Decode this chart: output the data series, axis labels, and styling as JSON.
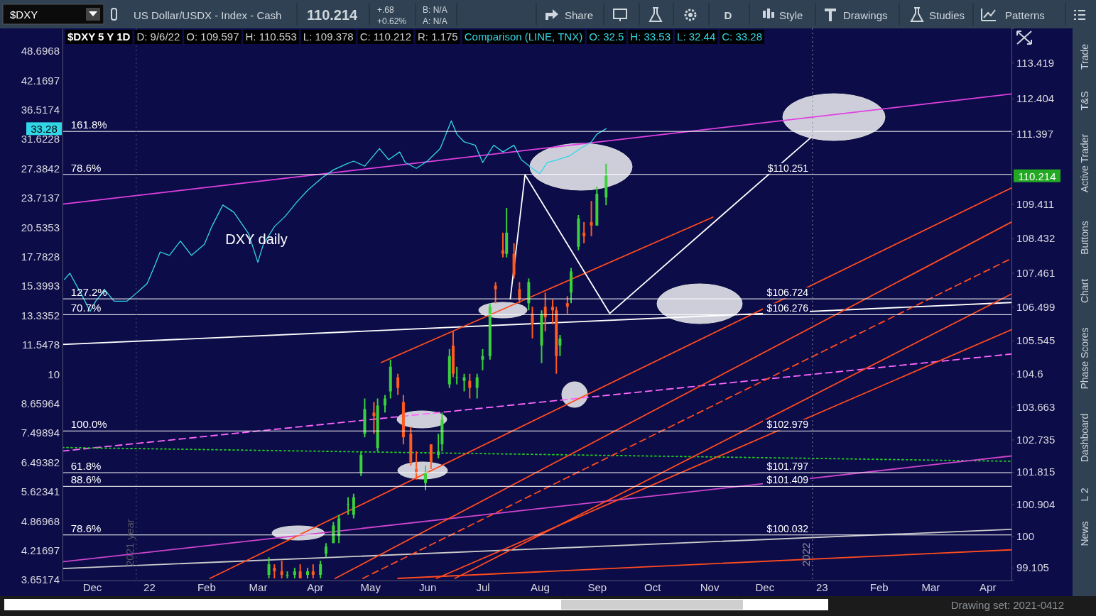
{
  "chart_data": {
    "type": "candlestick",
    "title": "$DXY 5 Y 1D",
    "annotations": [
      "D: 9/6/22",
      "O: 109.597",
      "H: 110.553",
      "L: 109.378",
      "C: 110.212",
      "R: 1.175",
      "Comparison (LINE, TNX)",
      "O: 32.5",
      "H: 33.53",
      "L: 32.44",
      "C: 33.28",
      "$DXY",
      "US Dollar/USDX - Index - Cash",
      "110.214",
      "+.68",
      "+0.62%",
      "B: N/A",
      "A: N/A",
      "Share",
      "D",
      "Style",
      "Drawings",
      "Studies",
      "Patterns",
      "Trade",
      "T&S",
      "Active Trader",
      "Buttons",
      "Chart",
      "Phase Scores",
      "Dashboard",
      "L 2",
      "News",
      "Drawing set: 2021-0412",
      "DXY daily",
      "33.28",
      "110.214",
      {
        "text": "161.8%",
        "x": "2021-11-18",
        "y": 111.47
      },
      {
        "text": "78.6%",
        "x": "2021-11-18",
        "y": 110.251
      },
      {
        "text": "127.2%",
        "x": "2021-11-18",
        "y": 106.724
      },
      {
        "text": "70.7%",
        "x": "2021-11-18",
        "y": 106.276
      },
      {
        "text": "100.0%",
        "x": "2021-11-18",
        "y": 102.979
      },
      {
        "text": "61.8%",
        "x": "2021-11-18",
        "y": 101.797
      },
      {
        "text": "88.6%",
        "x": "2021-11-18",
        "y": 101.409
      },
      {
        "text": "78.6%",
        "x": "2021-11-18",
        "y": 100.032
      }
    ],
    "xlim": [
      "2021-11-15",
      "2023-04-14"
    ],
    "xticks": [
      {
        "value": "2021-12-01",
        "label": "Dec"
      },
      {
        "value": "2022-01-01",
        "label": "22"
      },
      {
        "value": "2022-02-01",
        "label": "Feb"
      },
      {
        "value": "2022-03-01",
        "label": "Mar"
      },
      {
        "value": "2022-04-01",
        "label": "Apr"
      },
      {
        "value": "2022-05-01",
        "label": "May"
      },
      {
        "value": "2022-06-01",
        "label": "Jun"
      },
      {
        "value": "2022-07-01",
        "label": "Jul"
      },
      {
        "value": "2022-08-01",
        "label": "Aug"
      },
      {
        "value": "2022-09-01",
        "label": "Sep"
      },
      {
        "value": "2022-10-01",
        "label": "Oct"
      },
      {
        "value": "2022-11-01",
        "label": "Nov"
      },
      {
        "value": "2022-12-01",
        "label": "Dec"
      },
      {
        "value": "2023-01-01",
        "label": "23"
      },
      {
        "value": "2023-02-01",
        "label": "Feb"
      },
      {
        "value": "2023-03-01",
        "label": "Mar"
      },
      {
        "value": "2023-04-01",
        "label": "Apr"
      }
    ],
    "ylim": [
      98.74,
      114.39
    ],
    "yticks": [
      99.105,
      100,
      100.904,
      101.815,
      102.735,
      103.663,
      104.6,
      105.545,
      106.499,
      107.461,
      108.432,
      109.411,
      111.397,
      112.404,
      113.419
    ],
    "y2lim": [
      3.64,
      54.4
    ],
    "y2ticks": [
      3.65174,
      4.21697,
      4.86968,
      5.62341,
      6.49382,
      7.49894,
      8.65964,
      10,
      11.5478,
      13.3352,
      15.3993,
      17.7828,
      20.5353,
      23.7137,
      27.3842,
      31.6228,
      36.5174,
      42.1697,
      48.6968
    ],
    "log": "y2",
    "ref_lines": [
      {
        "axis": "y",
        "value": 111.47,
        "label": null
      },
      {
        "axis": "y",
        "value": 110.251,
        "label": "$110.251"
      },
      {
        "axis": "y",
        "value": 106.724,
        "label": "$106.724"
      },
      {
        "axis": "y",
        "value": 106.276,
        "label": "$106.276"
      },
      {
        "axis": "y",
        "value": 102.979,
        "label": "$102.979"
      },
      {
        "axis": "y",
        "value": 101.797,
        "label": "$101.797"
      },
      {
        "axis": "y",
        "value": 101.409,
        "label": "$101.409"
      },
      {
        "axis": "y",
        "value": 100.032,
        "label": "$100.032"
      },
      {
        "axis": "x",
        "value": "2021-12-25",
        "label": "2021 year",
        "line_style": "dotted",
        "color": "#555566"
      },
      {
        "axis": "x",
        "value": "2022-12-27",
        "label": "2022",
        "line_style": "dotted",
        "color": "#8a8a99"
      }
    ],
    "series": [
      {
        "type": "line",
        "x": [
          "2021-11-15",
          "2023-04-14"
        ],
        "values": [
          109.41,
          112.53
        ],
        "color": "#e040e0"
      },
      {
        "type": "line",
        "x": [
          "2021-11-15",
          "2023-04-14"
        ],
        "values": [
          105.43,
          106.62
        ],
        "color": "#ffffff"
      },
      {
        "type": "line",
        "x": [
          "2021-11-15",
          "2023-04-14"
        ],
        "values": [
          102.41,
          105.16
        ],
        "color": "#ff66ff",
        "line_style": "dashed"
      },
      {
        "type": "line",
        "x": [
          "2021-11-15",
          "2023-04-14"
        ],
        "values": [
          102.51,
          102.12
        ],
        "color": "#22cc22",
        "line_style": "dotted"
      },
      {
        "type": "line",
        "x": [
          "2021-11-15",
          "2023-04-14"
        ],
        "values": [
          99.27,
          102.27
        ],
        "color": "#cc44cc"
      },
      {
        "type": "line",
        "x": [
          "2021-11-15",
          "2023-04-14"
        ],
        "values": [
          99.08,
          100.19
        ],
        "color": "#cccccc"
      },
      {
        "type": "line",
        "x": [
          "2022-05-16",
          "2023-04-14"
        ],
        "values": [
          98.8,
          99.61
        ],
        "color": "#ff4b1f"
      },
      {
        "type": "line",
        "x": [
          "2022-02-03",
          "2023-04-14"
        ],
        "values": [
          98.8,
          109.87
        ],
        "color": "#ff4b1f"
      },
      {
        "type": "line",
        "x": [
          "2022-06-06",
          "2023-04-14"
        ],
        "values": [
          98.8,
          105.85
        ],
        "color": "#ff4b1f"
      },
      {
        "type": "line",
        "x": [
          "2022-04-27",
          "2023-04-14"
        ],
        "values": [
          98.8,
          107.87
        ],
        "color": "#ff4b1f",
        "line_style": "dashed"
      },
      {
        "type": "line",
        "x": [
          "2022-04-12",
          "2023-04-14"
        ],
        "values": [
          98.8,
          108.9
        ],
        "color": "#ff4b1f"
      },
      {
        "type": "line",
        "x": [
          "2022-06-16",
          "2023-04-14"
        ],
        "values": [
          98.8,
          106.86
        ],
        "color": "#ff4b1f"
      },
      {
        "type": "line",
        "x": [
          "2022-05-07",
          "2022-11-03"
        ],
        "values": [
          104.92,
          109.04
        ],
        "color": "#ff4b1f"
      },
      {
        "type": "line",
        "x": [
          "2022-07-16",
          "2022-07-24",
          "2022-09-08",
          "2022-12-26"
        ],
        "values": [
          106.72,
          110.24,
          106.31,
          111.29
        ],
        "color": "#ffffff"
      },
      {
        "type": "line",
        "axis": "y2",
        "color": "#33d6e6",
        "x": [
          "2021-11-16",
          "2021-11-19",
          "2021-11-22",
          "2021-11-26",
          "2021-11-30",
          "2021-12-03",
          "2021-12-08",
          "2021-12-13",
          "2021-12-20",
          "2021-12-27",
          "2021-12-31",
          "2022-01-04",
          "2022-01-07",
          "2022-01-12",
          "2022-01-18",
          "2022-01-24",
          "2022-01-31",
          "2022-02-04",
          "2022-02-10",
          "2022-02-16",
          "2022-02-24",
          "2022-03-01",
          "2022-03-04",
          "2022-03-10",
          "2022-03-16",
          "2022-03-22",
          "2022-03-28",
          "2022-04-05",
          "2022-04-11",
          "2022-04-18",
          "2022-04-22",
          "2022-04-28",
          "2022-05-06",
          "2022-05-11",
          "2022-05-17",
          "2022-05-20",
          "2022-05-26",
          "2022-06-01",
          "2022-06-08",
          "2022-06-14",
          "2022-06-17",
          "2022-06-21",
          "2022-06-27",
          "2022-07-01",
          "2022-07-07",
          "2022-07-12",
          "2022-07-18",
          "2022-07-22",
          "2022-07-29",
          "2022-08-01",
          "2022-08-05",
          "2022-08-11",
          "2022-08-17",
          "2022-08-23",
          "2022-08-29",
          "2022-09-01",
          "2022-09-06"
        ],
        "values": [
          15.9,
          16.4,
          15.6,
          14.6,
          13.6,
          14.3,
          15.1,
          14.3,
          14.3,
          15.1,
          15.6,
          17.0,
          18.2,
          17.9,
          19.2,
          17.9,
          18.9,
          20.6,
          22.9,
          22.1,
          19.9,
          17.3,
          18.9,
          20.6,
          21.7,
          23.2,
          24.6,
          26.2,
          27.2,
          28.0,
          28.4,
          27.7,
          30.2,
          28.6,
          29.7,
          28.2,
          27.4,
          28.4,
          30.2,
          34.6,
          32.4,
          31.2,
          30.7,
          28.2,
          30.7,
          29.7,
          30.7,
          28.6,
          27.2,
          26.7,
          28.2,
          28.6,
          29.1,
          30.2,
          31.2,
          32.4,
          33.28
        ]
      },
      {
        "type": "candlestick",
        "x": [
          "2022-03-07",
          "2022-03-10",
          "2022-03-14",
          "2022-03-17",
          "2022-03-21",
          "2022-03-24",
          "2022-03-28",
          "2022-03-31",
          "2022-04-04",
          "2022-04-07",
          "2022-04-11",
          "2022-04-14",
          "2022-04-19",
          "2022-04-22",
          "2022-04-26",
          "2022-04-28",
          "2022-05-03",
          "2022-05-05",
          "2022-05-09",
          "2022-05-12",
          "2022-05-16",
          "2022-05-19",
          "2022-05-23",
          "2022-05-26",
          "2022-05-31",
          "2022-06-03",
          "2022-06-07",
          "2022-06-09",
          "2022-06-13",
          "2022-06-15",
          "2022-06-17",
          "2022-06-21",
          "2022-06-24",
          "2022-06-28",
          "2022-07-01",
          "2022-07-05",
          "2022-07-08",
          "2022-07-12",
          "2022-07-14",
          "2022-07-18",
          "2022-07-21",
          "2022-07-26",
          "2022-07-28",
          "2022-08-02",
          "2022-08-04",
          "2022-08-08",
          "2022-08-10",
          "2022-08-12",
          "2022-08-16",
          "2022-08-18",
          "2022-08-22",
          "2022-08-25",
          "2022-08-29",
          "2022-09-01",
          "2022-09-06"
        ],
        "ohlc": [
          [
            98.9,
            99.4,
            98.8,
            99.2
          ],
          [
            99.1,
            99.2,
            98.8,
            99.0
          ],
          [
            99.0,
            99.3,
            98.8,
            98.9
          ],
          [
            98.9,
            99.0,
            98.8,
            98.9
          ],
          [
            98.9,
            99.1,
            98.8,
            99.0
          ],
          [
            99.0,
            99.2,
            98.8,
            98.8
          ],
          [
            98.9,
            99.1,
            98.8,
            99.0
          ],
          [
            99.0,
            99.2,
            98.8,
            98.9
          ],
          [
            98.9,
            99.3,
            98.8,
            99.2
          ],
          [
            99.5,
            99.8,
            99.4,
            99.7
          ],
          [
            99.8,
            100.4,
            99.8,
            100.3
          ],
          [
            100.0,
            100.6,
            99.8,
            100.5
          ],
          [
            100.9,
            101.1,
            100.6,
            100.9
          ],
          [
            100.6,
            101.2,
            100.5,
            101.1
          ],
          [
            101.8,
            102.4,
            101.7,
            102.3
          ],
          [
            102.9,
            103.9,
            102.8,
            103.6
          ],
          [
            103.5,
            103.8,
            102.9,
            103.4
          ],
          [
            102.5,
            103.9,
            102.4,
            103.7
          ],
          [
            103.7,
            104.0,
            103.5,
            103.9
          ],
          [
            104.1,
            105.0,
            103.9,
            104.8
          ],
          [
            104.5,
            104.6,
            104.0,
            104.2
          ],
          [
            103.8,
            104.0,
            102.6,
            102.8
          ],
          [
            102.9,
            103.1,
            102.0,
            102.1
          ],
          [
            101.9,
            102.4,
            101.6,
            101.8
          ],
          [
            101.5,
            102.0,
            101.3,
            101.8
          ],
          [
            102.6,
            102.6,
            101.9,
            102.1
          ],
          [
            102.3,
            102.9,
            102.2,
            102.4
          ],
          [
            102.6,
            103.5,
            102.4,
            103.3
          ],
          [
            104.3,
            105.3,
            104.2,
            105.1
          ],
          [
            105.4,
            105.8,
            104.5,
            104.6
          ],
          [
            104.5,
            104.8,
            104.3,
            104.5
          ],
          [
            104.4,
            104.6,
            104.1,
            104.5
          ],
          [
            104.4,
            104.6,
            103.9,
            104.2
          ],
          [
            104.2,
            104.6,
            103.9,
            104.5
          ],
          [
            105.0,
            105.3,
            104.7,
            105.1
          ],
          [
            105.1,
            106.6,
            105.0,
            106.5
          ],
          [
            107.1,
            107.2,
            106.6,
            107.0
          ],
          [
            108.1,
            108.6,
            107.9,
            108.0
          ],
          [
            108.0,
            109.3,
            107.9,
            108.6
          ],
          [
            108.0,
            108.3,
            107.3,
            107.4
          ],
          [
            107.0,
            107.2,
            106.6,
            106.7
          ],
          [
            106.6,
            107.3,
            106.4,
            107.2
          ],
          [
            106.3,
            106.5,
            105.6,
            106.0
          ],
          [
            105.4,
            106.4,
            104.9,
            106.3
          ],
          [
            106.5,
            106.9,
            105.8,
            106.2
          ],
          [
            106.5,
            106.7,
            106.0,
            106.4
          ],
          [
            106.4,
            106.5,
            104.6,
            105.1
          ],
          [
            105.4,
            105.7,
            105.1,
            105.6
          ],
          [
            106.6,
            106.8,
            106.3,
            106.5
          ],
          [
            106.9,
            107.6,
            106.6,
            107.5
          ],
          [
            108.2,
            109.1,
            108.1,
            109.0
          ],
          [
            108.6,
            108.9,
            108.3,
            108.5
          ],
          [
            108.9,
            109.5,
            108.5,
            108.8
          ],
          [
            108.8,
            109.9,
            108.8,
            109.7
          ],
          [
            109.597,
            110.553,
            109.378,
            110.212
          ]
        ],
        "colors": [
          "#3ad13a",
          "#ff5a1f",
          "#ff5a1f",
          "#3ad13a",
          "#3ad13a",
          "#ff5a1f",
          "#3ad13a",
          "#ff5a1f",
          "#3ad13a",
          "#3ad13a",
          "#3ad13a",
          "#3ad13a",
          "#3ad13a",
          "#3ad13a",
          "#3ad13a",
          "#3ad13a",
          "#ff5a1f",
          "#3ad13a",
          "#3ad13a",
          "#3ad13a",
          "#ff5a1f",
          "#ff5a1f",
          "#ff5a1f",
          "#ff5a1f",
          "#3ad13a",
          "#ff5a1f",
          "#3ad13a",
          "#3ad13a",
          "#3ad13a",
          "#ff5a1f",
          "#3ad13a",
          "#3ad13a",
          "#ff5a1f",
          "#3ad13a",
          "#3ad13a",
          "#3ad13a",
          "#ff5a1f",
          "#ff5a1f",
          "#3ad13a",
          "#ff5a1f",
          "#ff5a1f",
          "#3ad13a",
          "#ff5a1f",
          "#3ad13a",
          "#ff5a1f",
          "#ff5a1f",
          "#ff5a1f",
          "#3ad13a",
          "#ff5a1f",
          "#3ad13a",
          "#3ad13a",
          "#ff5a1f",
          "#ff5a1f",
          "#3ad13a",
          "#3ad13a"
        ]
      }
    ]
  }
}
